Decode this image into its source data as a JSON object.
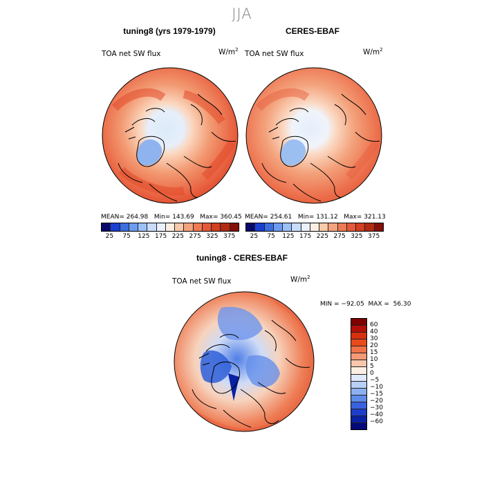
{
  "season": "JJA",
  "panels": [
    {
      "title": "tuning8 (yrs 1979-1979)",
      "variable": "TOA net SW flux",
      "units": "W/m",
      "units_sup": "2",
      "stats": "MEAN= 264.98   Min= 143.69   Max= 360.45"
    },
    {
      "title": "CERES-EBAF",
      "variable": "TOA net SW flux",
      "units": "W/m",
      "units_sup": "2",
      "stats": "MEAN= 254.61   Min= 131.12   Max= 321.13"
    },
    {
      "title": "tuning8 - CERES-EBAF",
      "variable": "TOA net SW flux",
      "units": "W/m",
      "units_sup": "2",
      "stats": "MIN = −92.05  MAX =  56.30"
    }
  ],
  "colors": {
    "abs_scale": [
      "#08086b",
      "#1b3fd0",
      "#3c6ee0",
      "#6c9bf0",
      "#9cc0f8",
      "#c8dcfb",
      "#eaf1fd",
      "#fdeee3",
      "#f9c9a9",
      "#f4a37d",
      "#ee7a55",
      "#e5593a",
      "#d23f22",
      "#b32a12",
      "#860f0a"
    ],
    "diff_scale": [
      "#7e0000",
      "#b30f06",
      "#d6300e",
      "#ea4a1c",
      "#f07248",
      "#f59a77",
      "#f9c6ab",
      "#fdeee3",
      "#dfe9fb",
      "#b8cff6",
      "#8cb0f0",
      "#5f8bea",
      "#3a62e0",
      "#1d3ec8",
      "#0a21a3",
      "#040a78"
    ],
    "land": "#000000"
  },
  "chart_data": [
    {
      "type": "heatmap",
      "projection": "north polar stereographic",
      "title": "tuning8 (yrs 1979-1979)",
      "variable": "TOA net SW flux",
      "units": "W/m2",
      "mean": 264.98,
      "min": 143.69,
      "max": 360.45,
      "colorbar_ticks": [
        25,
        75,
        125,
        175,
        225,
        275,
        325,
        375
      ]
    },
    {
      "type": "heatmap",
      "projection": "north polar stereographic",
      "title": "CERES-EBAF",
      "variable": "TOA net SW flux",
      "units": "W/m2",
      "mean": 254.61,
      "min": 131.12,
      "max": 321.13,
      "colorbar_ticks": [
        25,
        75,
        125,
        175,
        225,
        275,
        325,
        375
      ]
    },
    {
      "type": "heatmap",
      "projection": "north polar stereographic",
      "title": "tuning8 - CERES-EBAF",
      "variable": "TOA net SW flux",
      "units": "W/m2",
      "min": -92.05,
      "max": 56.3,
      "colorbar_ticks": [
        60,
        40,
        30,
        20,
        15,
        10,
        5,
        0,
        -5,
        -10,
        -15,
        -20,
        -30,
        -40,
        -60
      ]
    }
  ],
  "ticks_abs": [
    "25",
    "75",
    "125",
    "175",
    "225",
    "275",
    "325",
    "375"
  ],
  "ticks_diff": [
    "60",
    "40",
    "30",
    "20",
    "15",
    "10",
    "5",
    "0",
    "−5",
    "−10",
    "−15",
    "−20",
    "−30",
    "−40",
    "−60"
  ]
}
